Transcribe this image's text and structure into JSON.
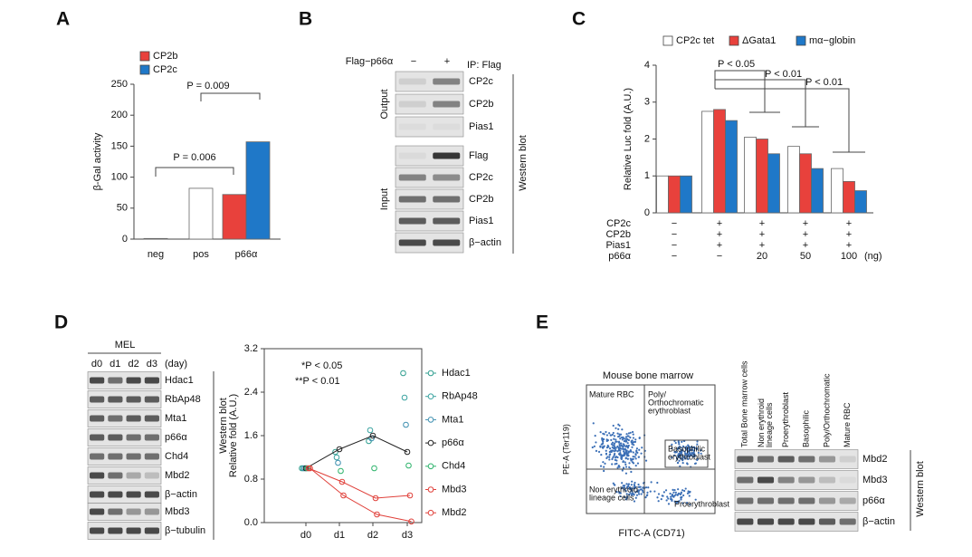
{
  "panel_labels": [
    "A",
    "B",
    "C",
    "D",
    "E"
  ],
  "chart_data": [
    {
      "type": "bar",
      "y_label": "β-Gal activity",
      "categories": [
        "neg",
        "pos",
        "p66α"
      ],
      "series": [
        {
          "color": "#ffffff",
          "values": [
            1,
            82,
            null
          ]
        },
        {
          "name": "CP2b",
          "color": "#e8413c",
          "values": [
            null,
            null,
            72
          ]
        },
        {
          "name": "CP2c",
          "color": "#1f78c8",
          "values": [
            null,
            null,
            157
          ]
        }
      ],
      "ylim": [
        0,
        250
      ],
      "yticks": [
        0,
        50,
        100,
        150,
        200,
        250
      ],
      "annotations": [
        "P = 0.006",
        "P = 0.009"
      ]
    },
    {
      "type": "bar",
      "y_label": "Relative Luc fold (A.U.)",
      "series": [
        {
          "name": "CP2c tet",
          "color": "#ffffff",
          "values": [
            1.0,
            2.75,
            2.05,
            1.8,
            1.2
          ]
        },
        {
          "name": "ΔGata1",
          "color": "#e8413c",
          "values": [
            1.0,
            2.8,
            2.0,
            1.6,
            0.85
          ]
        },
        {
          "name": "mα−globin",
          "color": "#1f78c8",
          "values": [
            1.0,
            2.5,
            1.6,
            1.2,
            0.6
          ]
        }
      ],
      "ylim": [
        0,
        4
      ],
      "yticks": [
        0,
        1,
        2,
        3,
        4
      ],
      "annotations": [
        "P < 0.05",
        "P < 0.01",
        "P < 0.01"
      ],
      "conditions": [
        {
          "label": "CP2c",
          "values": [
            "−",
            "+",
            "+",
            "+",
            "+"
          ]
        },
        {
          "label": "CP2b",
          "values": [
            "−",
            "+",
            "+",
            "+",
            "+"
          ]
        },
        {
          "label": "Pias1",
          "values": [
            "−",
            "+",
            "+",
            "+",
            "+"
          ]
        },
        {
          "label": "p66α",
          "values": [
            "−",
            "−",
            20,
            50,
            100
          ]
        }
      ],
      "condition_unit": "(ng)"
    },
    {
      "type": "line",
      "y_label": "Relative fold (A.U.)",
      "categories": [
        "d0",
        "d1",
        "d2",
        "d3"
      ],
      "series": [
        {
          "name": "Hdac1",
          "color": "#2f9e8f",
          "show_line": false,
          "values": [
            1.0,
            1.3,
            1.5,
            2.75
          ]
        },
        {
          "name": "RbAp48",
          "color": "#3aa3a0",
          "show_line": false,
          "values": [
            1.0,
            1.2,
            1.7,
            2.3
          ]
        },
        {
          "name": "Mta1",
          "color": "#3d8fb0",
          "show_line": false,
          "values": [
            1.0,
            1.1,
            1.55,
            1.8
          ]
        },
        {
          "name": "p66α",
          "color": "#222222",
          "show_line": true,
          "values": [
            1.0,
            1.35,
            1.6,
            1.3
          ]
        },
        {
          "name": "Chd4",
          "color": "#2db36b",
          "show_line": false,
          "values": [
            1.0,
            0.95,
            1.0,
            1.05
          ]
        },
        {
          "name": "Mbd3",
          "color": "#e0403a",
          "show_line": true,
          "values": [
            1.0,
            0.75,
            0.45,
            0.5
          ]
        },
        {
          "name": "Mbd2",
          "color": "#e0403a",
          "show_line": true,
          "values": [
            1.0,
            0.5,
            0.15,
            0.02
          ]
        }
      ],
      "ylim": [
        0,
        3.2
      ],
      "yticks": [
        {
          "value": 0,
          "label": "0.0"
        },
        0.8,
        1.6,
        2.4,
        3.2
      ],
      "annotations": [
        "*P < 0.05",
        "**P < 0.01"
      ]
    }
  ],
  "blot_b": {
    "header": "Flag−p66α",
    "lanes": [
      "−",
      "+"
    ],
    "ip": "IP: Flag",
    "sections": [
      {
        "label": "Output",
        "rows": [
          "CP2c",
          "CP2b",
          "Pias1"
        ]
      },
      {
        "label": "Input",
        "rows": [
          "Flag",
          "CP2c",
          "CP2b",
          "Pias1",
          "β−actin"
        ]
      }
    ],
    "method": "Western blot"
  },
  "blot_d": {
    "cell_line": "MEL",
    "lanes": [
      "d0",
      "d1",
      "d2",
      "d3"
    ],
    "unit": "(day)",
    "rows": [
      "Hdac1",
      "RbAp48",
      "Mta1",
      "p66α",
      "Chd4",
      "Mbd2",
      "β−actin"
    ],
    "rows_2": [
      "Mbd3",
      "β−tubulin"
    ],
    "method": "Western blot"
  },
  "flow_e": {
    "title": "Mouse bone marrow",
    "y_label": "PE-A (Ter119)",
    "x_label": "FITC-A (CD71)",
    "gates": [
      [
        "Mature RBC"
      ],
      [
        "Poly/",
        "Orthochromatic",
        "erythroblast"
      ],
      [
        "Basophilic",
        "erythroblast"
      ],
      [
        "Non erythroid",
        "lineage cells"
      ],
      [
        "Proerythroblast"
      ]
    ]
  },
  "blot_e": {
    "lanes": [
      [
        "Total Bone marrow cells"
      ],
      [
        "Non erythroid",
        "lineage cells"
      ],
      [
        "Proerythroblast"
      ],
      [
        "Basophilic"
      ],
      [
        "Poly/Orthochromatic"
      ],
      [
        "Mature RBC"
      ]
    ],
    "rows": [
      "Mbd2",
      "Mbd3",
      "p66α",
      "β−actin"
    ],
    "method": "Western blot"
  }
}
